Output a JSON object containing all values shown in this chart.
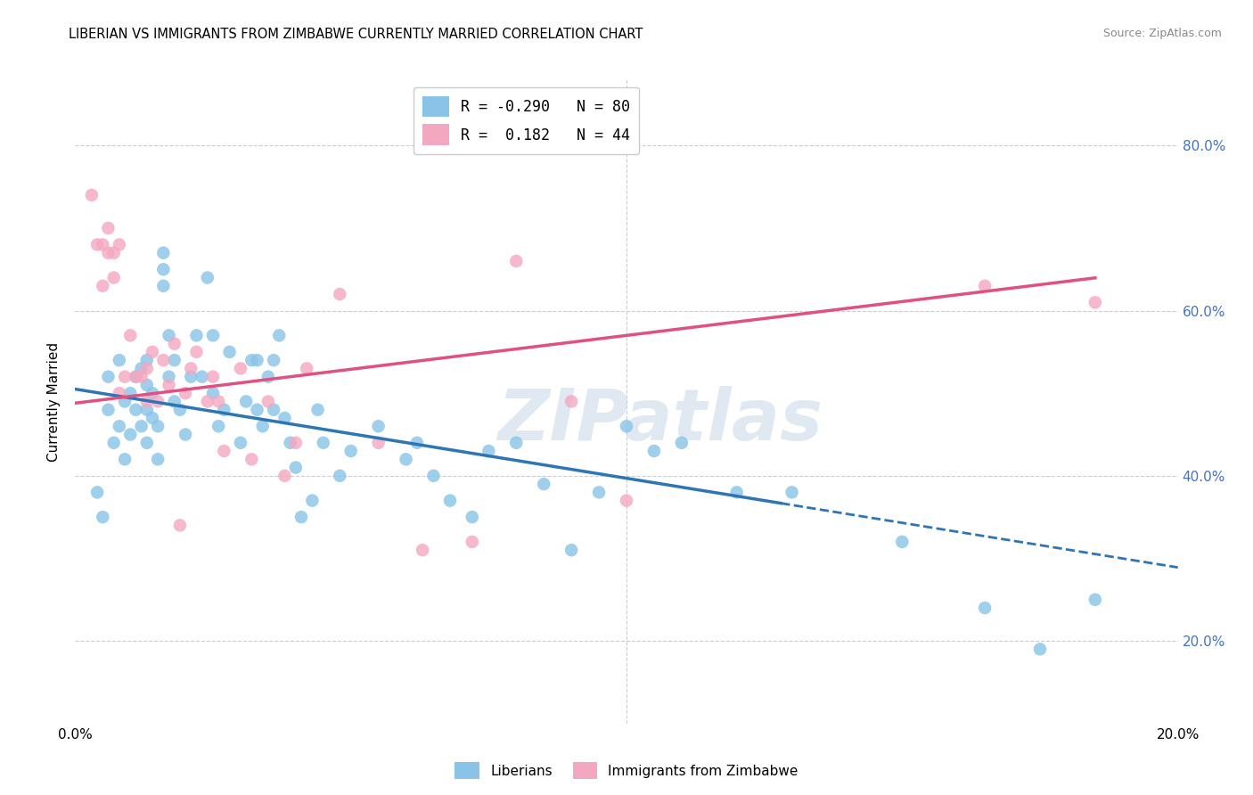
{
  "title": "LIBERIAN VS IMMIGRANTS FROM ZIMBABWE CURRENTLY MARRIED CORRELATION CHART",
  "source": "Source: ZipAtlas.com",
  "ylabel": "Currently Married",
  "xmin": 0.0,
  "xmax": 0.2,
  "ymin": 0.1,
  "ymax": 0.88,
  "ytick_values": [
    0.2,
    0.4,
    0.6,
    0.8
  ],
  "xtick_values": [
    0.0,
    0.02,
    0.04,
    0.06,
    0.08,
    0.1,
    0.12,
    0.14,
    0.16,
    0.18,
    0.2
  ],
  "blue_R": "-0.290",
  "blue_N": "80",
  "pink_R": "0.182",
  "pink_N": "44",
  "legend_entries": [
    "Liberians",
    "Immigrants from Zimbabwe"
  ],
  "blue_color": "#89C4E8",
  "pink_color": "#F4A8C0",
  "trendline_blue": "#2E75B6",
  "trendline_pink": "#E05080",
  "blue_points_x": [
    0.004,
    0.005,
    0.006,
    0.006,
    0.007,
    0.008,
    0.008,
    0.009,
    0.009,
    0.01,
    0.01,
    0.011,
    0.011,
    0.012,
    0.012,
    0.013,
    0.013,
    0.013,
    0.013,
    0.014,
    0.014,
    0.015,
    0.015,
    0.016,
    0.016,
    0.016,
    0.017,
    0.017,
    0.018,
    0.018,
    0.019,
    0.02,
    0.021,
    0.022,
    0.023,
    0.024,
    0.025,
    0.025,
    0.026,
    0.027,
    0.028,
    0.03,
    0.031,
    0.032,
    0.033,
    0.033,
    0.034,
    0.035,
    0.036,
    0.036,
    0.037,
    0.038,
    0.039,
    0.04,
    0.041,
    0.043,
    0.044,
    0.045,
    0.048,
    0.05,
    0.055,
    0.06,
    0.062,
    0.065,
    0.068,
    0.072,
    0.075,
    0.08,
    0.085,
    0.09,
    0.095,
    0.1,
    0.105,
    0.11,
    0.12,
    0.13,
    0.15,
    0.165,
    0.175,
    0.185
  ],
  "blue_points_y": [
    0.38,
    0.35,
    0.48,
    0.52,
    0.44,
    0.46,
    0.54,
    0.42,
    0.49,
    0.45,
    0.5,
    0.48,
    0.52,
    0.46,
    0.53,
    0.44,
    0.48,
    0.51,
    0.54,
    0.47,
    0.5,
    0.42,
    0.46,
    0.63,
    0.65,
    0.67,
    0.52,
    0.57,
    0.49,
    0.54,
    0.48,
    0.45,
    0.52,
    0.57,
    0.52,
    0.64,
    0.5,
    0.57,
    0.46,
    0.48,
    0.55,
    0.44,
    0.49,
    0.54,
    0.48,
    0.54,
    0.46,
    0.52,
    0.48,
    0.54,
    0.57,
    0.47,
    0.44,
    0.41,
    0.35,
    0.37,
    0.48,
    0.44,
    0.4,
    0.43,
    0.46,
    0.42,
    0.44,
    0.4,
    0.37,
    0.35,
    0.43,
    0.44,
    0.39,
    0.31,
    0.38,
    0.46,
    0.43,
    0.44,
    0.38,
    0.38,
    0.32,
    0.24,
    0.19,
    0.25
  ],
  "pink_points_x": [
    0.003,
    0.004,
    0.005,
    0.005,
    0.006,
    0.006,
    0.007,
    0.007,
    0.008,
    0.008,
    0.009,
    0.01,
    0.011,
    0.012,
    0.013,
    0.013,
    0.014,
    0.015,
    0.016,
    0.017,
    0.018,
    0.019,
    0.02,
    0.022,
    0.024,
    0.025,
    0.027,
    0.03,
    0.032,
    0.035,
    0.038,
    0.04,
    0.042,
    0.048,
    0.055,
    0.063,
    0.072,
    0.08,
    0.09,
    0.1,
    0.165,
    0.185,
    0.021,
    0.026
  ],
  "pink_points_y": [
    0.74,
    0.68,
    0.63,
    0.68,
    0.7,
    0.67,
    0.67,
    0.64,
    0.68,
    0.5,
    0.52,
    0.57,
    0.52,
    0.52,
    0.49,
    0.53,
    0.55,
    0.49,
    0.54,
    0.51,
    0.56,
    0.34,
    0.5,
    0.55,
    0.49,
    0.52,
    0.43,
    0.53,
    0.42,
    0.49,
    0.4,
    0.44,
    0.53,
    0.62,
    0.44,
    0.31,
    0.32,
    0.66,
    0.49,
    0.37,
    0.63,
    0.61,
    0.53,
    0.49
  ],
  "blue_solid_xend": 0.128,
  "blue_trend_yintercept": 0.505,
  "blue_trend_slope": -1.08,
  "pink_trend_yintercept": 0.488,
  "pink_trend_slope": 0.82,
  "background_color": "#FFFFFF",
  "grid_color": "#CCCCCC",
  "watermark": "ZIPatlas"
}
